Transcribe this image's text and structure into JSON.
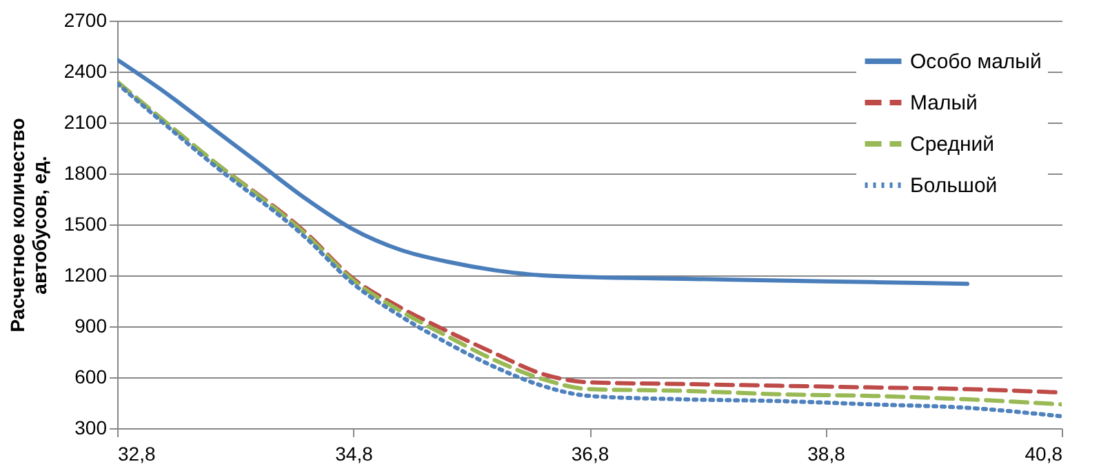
{
  "chart_data": {
    "type": "line",
    "ylabel": "Расчетное количество\nавтобусов, ед.",
    "xlim": [
      32.8,
      40.8
    ],
    "xticks": [
      {
        "value": 32.8,
        "label": "32,8"
      },
      {
        "value": 34.8,
        "label": "34,8"
      },
      {
        "value": 36.8,
        "label": "36,8"
      },
      {
        "value": 38.8,
        "label": "38,8"
      },
      {
        "value": 40.8,
        "label": "40,8"
      }
    ],
    "ylim": [
      300,
      2700
    ],
    "yticks": [
      300,
      600,
      900,
      1200,
      1500,
      1800,
      2100,
      2400,
      2700
    ],
    "grid": "y",
    "legend": "top right",
    "series": [
      {
        "name": "Особо малый",
        "color": "#4a7ebb",
        "line_style": "solid",
        "x": [
          32.8,
          33.2,
          33.6,
          34.0,
          34.4,
          34.8,
          35.2,
          35.6,
          36.0,
          36.4,
          36.8,
          37.6,
          38.4,
          39.2,
          40.0
        ],
        "values": [
          2470,
          2280,
          2070,
          1860,
          1650,
          1470,
          1350,
          1280,
          1230,
          1200,
          1190,
          1180,
          1170,
          1160,
          1150
        ]
      },
      {
        "name": "Малый",
        "color": "#be4b48",
        "line_style": "dashed",
        "x": [
          32.8,
          33.6,
          34.4,
          34.8,
          35.2,
          35.6,
          36.0,
          36.4,
          36.8,
          37.6,
          38.4,
          39.2,
          40.0,
          40.8
        ],
        "values": [
          2340,
          1880,
          1450,
          1180,
          1010,
          870,
          740,
          620,
          570,
          560,
          550,
          540,
          530,
          510
        ]
      },
      {
        "name": "Средний",
        "color": "#98b954",
        "line_style": "dashed",
        "x": [
          32.8,
          33.6,
          34.4,
          34.8,
          35.2,
          35.6,
          36.0,
          36.4,
          36.8,
          37.6,
          38.4,
          39.2,
          40.0,
          40.8
        ],
        "values": [
          2340,
          1880,
          1440,
          1170,
          990,
          840,
          700,
          590,
          530,
          520,
          500,
          490,
          470,
          440
        ]
      },
      {
        "name": "Большой",
        "color": "#4f81bd",
        "line_style": "dotted",
        "x": [
          32.8,
          33.6,
          34.4,
          34.8,
          35.2,
          35.6,
          36.0,
          36.4,
          36.8,
          37.6,
          38.4,
          39.2,
          40.0,
          40.8
        ],
        "values": [
          2330,
          1860,
          1420,
          1150,
          960,
          800,
          660,
          550,
          490,
          470,
          460,
          440,
          420,
          370
        ]
      }
    ]
  }
}
